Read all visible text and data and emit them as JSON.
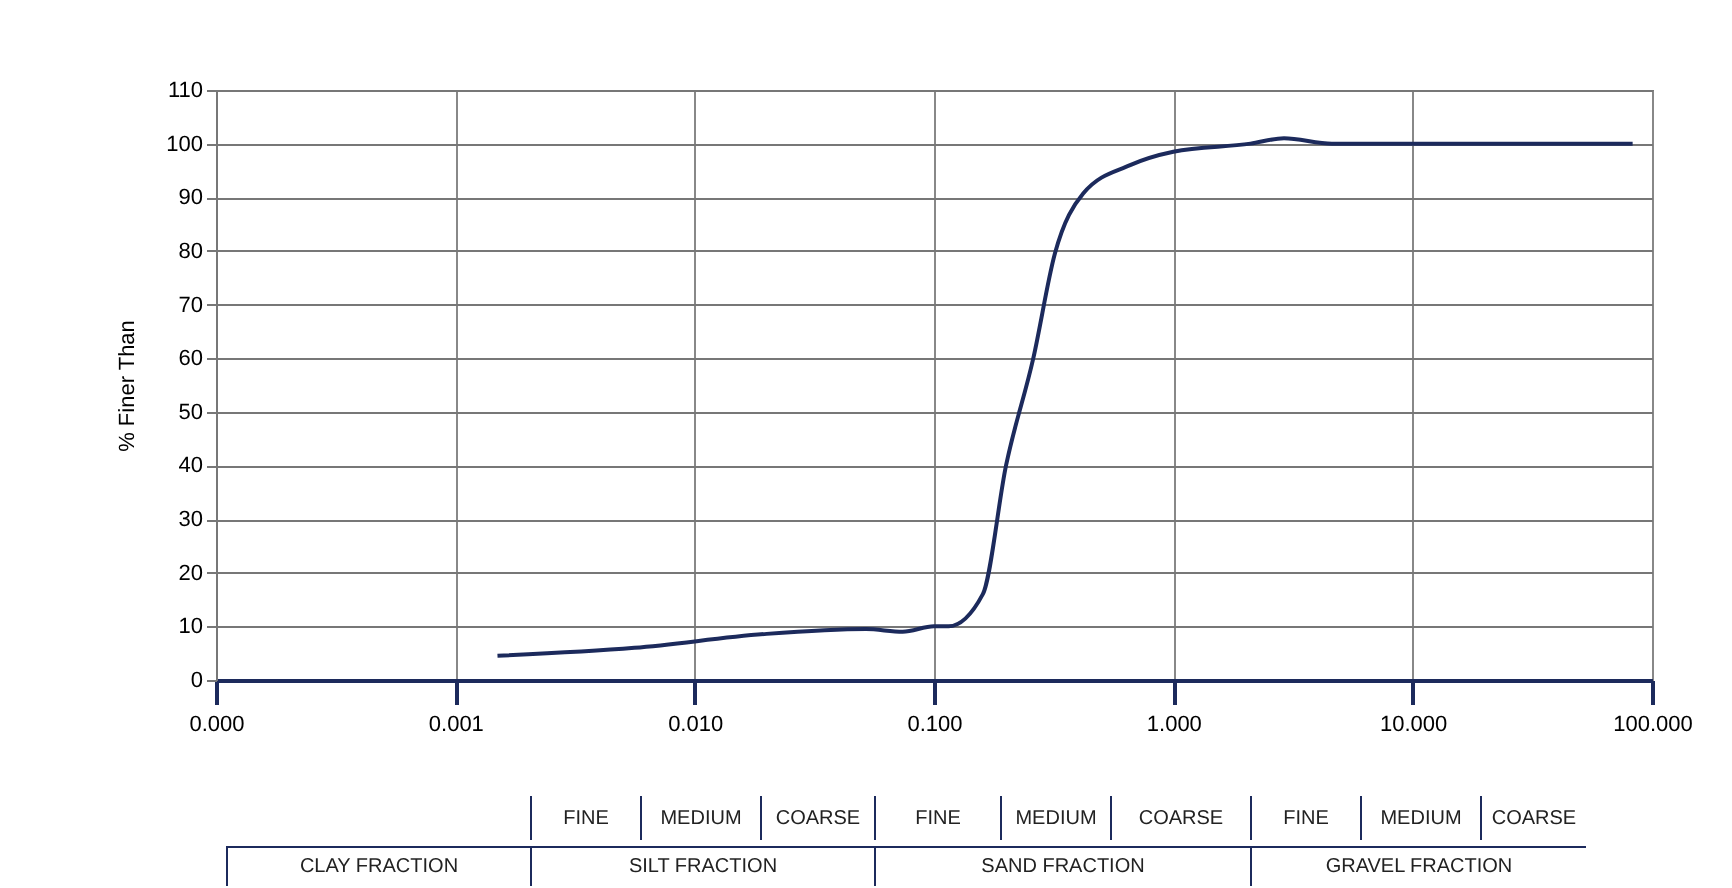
{
  "chart_data": {
    "type": "line",
    "ylabel": "% Finer Than",
    "x": [
      0.0015,
      0.0056,
      0.02,
      0.052,
      0.074,
      0.1,
      0.115,
      0.16,
      0.2,
      0.26,
      0.32,
      0.42,
      0.66,
      1.0,
      2.1,
      2.9,
      4.6,
      83
    ],
    "series": [
      {
        "color": "#1c2a5c",
        "values": [
          4.5,
          6,
          8.6,
          9.5,
          9,
          10,
          10,
          16,
          40,
          60,
          79.5,
          90.7,
          96,
          98.5,
          100,
          101,
          100,
          100
        ]
      }
    ],
    "log": "x",
    "xlim": [
      0.0001,
      100
    ],
    "xticks": [
      {
        "value": 0.0001,
        "label": "0.000"
      },
      {
        "value": 0.001,
        "label": "0.001"
      },
      {
        "value": 0.01,
        "label": "0.010"
      },
      {
        "value": 0.1,
        "label": "0.100"
      },
      {
        "value": 1,
        "label": "1.000"
      },
      {
        "value": 10,
        "label": "10.000"
      },
      {
        "value": 100,
        "label": "100.000"
      }
    ],
    "ylim": [
      0,
      110
    ],
    "yticks": [
      0,
      10,
      20,
      30,
      40,
      50,
      60,
      70,
      80,
      90,
      100,
      110
    ],
    "grid": true,
    "marker": "none",
    "line_style": "solid",
    "annotations": [
      "FINE",
      "MEDIUM",
      "COARSE",
      "FINE",
      "MEDIUM",
      "COARSE",
      "FINE",
      "MEDIUM",
      "COARSE",
      "CLAY FRACTION",
      "SILT FRACTION",
      "SAND FRACTION",
      "GRAVEL FRACTION"
    ]
  }
}
